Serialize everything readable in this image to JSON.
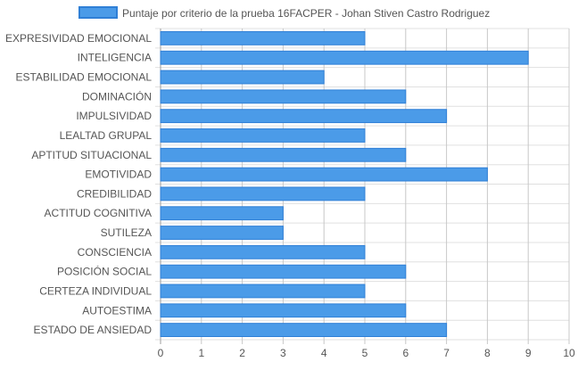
{
  "colors": {
    "bar_fill": "#4b9be8",
    "bar_stroke": "#2f7fd6",
    "grid": "#e0e0e0",
    "grid_major": "#9e9e9e",
    "text": "#555555"
  },
  "chart_data": {
    "type": "bar",
    "orientation": "horizontal",
    "legend": {
      "position": "top",
      "label": "Puntaje por criterio de la prueba 16FACPER - Johan Stiven Castro Rodriguez"
    },
    "categories": [
      "EXPRESIVIDAD EMOCIONAL",
      "INTELIGENCIA",
      "ESTABILIDAD EMOCIONAL",
      "DOMINACIÓN",
      "IMPULSIVIDAD",
      "LEALTAD GRUPAL",
      "APTITUD SITUACIONAL",
      "EMOTIVIDAD",
      "CREDIBILIDAD",
      "ACTITUD COGNITIVA",
      "SUTILEZA",
      "CONSCIENCIA",
      "POSICIÓN SOCIAL",
      "CERTEZA INDIVIDUAL",
      "AUTOESTIMA",
      "ESTADO DE ANSIEDAD"
    ],
    "series": [
      {
        "name": "Puntaje por criterio de la prueba 16FACPER - Johan Stiven Castro Rodriguez",
        "values": [
          5,
          9,
          4,
          6,
          7,
          5,
          6,
          8,
          5,
          3,
          3,
          5,
          6,
          5,
          6,
          7
        ]
      }
    ],
    "xlim": [
      0,
      10
    ],
    "xticks": [
      "0",
      "1",
      "2",
      "3",
      "4",
      "5",
      "6",
      "7",
      "8",
      "9",
      "10"
    ],
    "grid": true
  }
}
